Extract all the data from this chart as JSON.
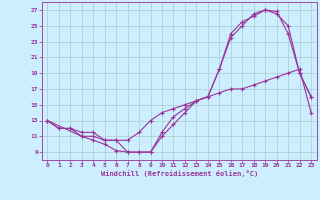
{
  "xlabel": "Windchill (Refroidissement éolien,°C)",
  "bg_color": "#cceeff",
  "line_color": "#993399",
  "grid_color": "#aacccc",
  "xlim": [
    -0.5,
    23.5
  ],
  "ylim": [
    8.0,
    28.0
  ],
  "yticks": [
    9,
    11,
    13,
    15,
    17,
    19,
    21,
    23,
    25,
    27
  ],
  "xticks": [
    0,
    1,
    2,
    3,
    4,
    5,
    6,
    7,
    8,
    9,
    10,
    11,
    12,
    13,
    14,
    15,
    16,
    17,
    18,
    19,
    20,
    21,
    22,
    23
  ],
  "line1_x": [
    0,
    1,
    2,
    3,
    4,
    5,
    6,
    7,
    8,
    9,
    10,
    11,
    12,
    13,
    14,
    15,
    16,
    17,
    18,
    19,
    20,
    21,
    22,
    23
  ],
  "line1_y": [
    13,
    12,
    12,
    11,
    10.5,
    10,
    9.2,
    9,
    9,
    9,
    11,
    12.5,
    14,
    15.5,
    16,
    19.5,
    24,
    25.5,
    26.2,
    27,
    26.5,
    25,
    19,
    16
  ],
  "line2_x": [
    0,
    1,
    2,
    3,
    4,
    5,
    6,
    7,
    8,
    9,
    10,
    11,
    12,
    13,
    14,
    15,
    16,
    17,
    18,
    19,
    20,
    21,
    22,
    23
  ],
  "line2_y": [
    13,
    12,
    12,
    11.5,
    11.5,
    10.5,
    10.5,
    10.5,
    11.5,
    13,
    14,
    14.5,
    15,
    15.5,
    16,
    16.5,
    17,
    17,
    17.5,
    18,
    18.5,
    19,
    19.5,
    14
  ],
  "line3_x": [
    0,
    3,
    4,
    5,
    6,
    7,
    8,
    9,
    10,
    11,
    12,
    13,
    14,
    15,
    16,
    17,
    18,
    19,
    20,
    21,
    22,
    23
  ],
  "line3_y": [
    13,
    11,
    11,
    10.5,
    10.5,
    9,
    9,
    9,
    11.5,
    13.5,
    14.5,
    15.5,
    16,
    19.5,
    23.5,
    25,
    26.5,
    27,
    26.8,
    24,
    19,
    16
  ]
}
